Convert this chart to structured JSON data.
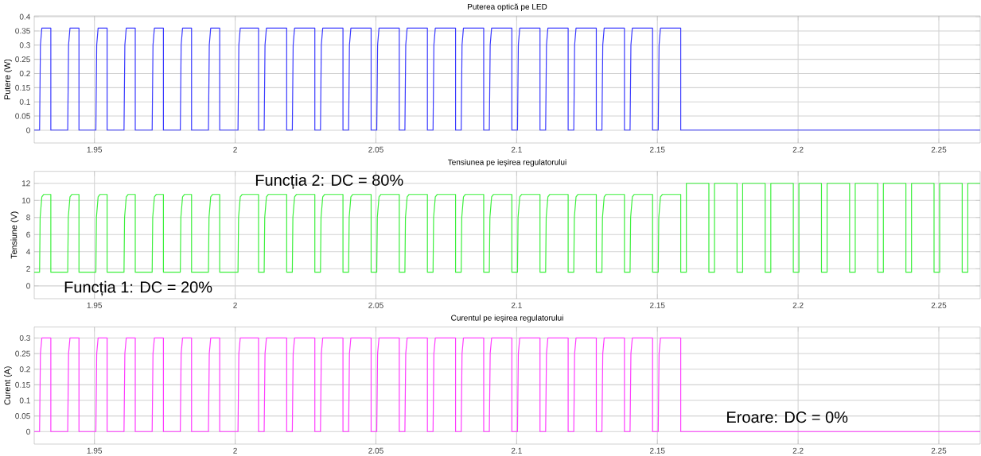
{
  "chart_data": [
    {
      "type": "line",
      "title": "Puterea optică pe LED",
      "ylabel": "Putere (W)",
      "xlim": [
        1.9286,
        2.2647
      ],
      "ylim": [
        -0.045,
        0.403
      ],
      "xticks": [
        1.95,
        2,
        2.05,
        2.1,
        2.15,
        2.2,
        2.25
      ],
      "yticks": [
        0,
        0.05,
        0.1,
        0.15,
        0.2,
        0.25,
        0.3,
        0.35,
        0.4
      ],
      "grid": true,
      "series": [
        {
          "color": "#3a3aff",
          "x": [
            1.9286,
            1.9305,
            1.9308,
            1.9313,
            1.9345,
            1.9345,
            1.9405,
            1.9408,
            1.9413,
            1.9445,
            1.9445,
            1.9505,
            1.9508,
            1.9513,
            1.9545,
            1.9545,
            1.9605,
            1.9608,
            1.9613,
            1.9645,
            1.9645,
            1.9705,
            1.9708,
            1.9713,
            1.9745,
            1.9745,
            1.9805,
            1.9808,
            1.9813,
            1.9845,
            1.9845,
            1.9905,
            1.9908,
            1.9913,
            1.9945,
            1.9945,
            2.001,
            2.0013,
            2.0018,
            2.0083,
            2.0083,
            2.0103,
            2.0106,
            2.0111,
            2.0183,
            2.0183,
            2.0203,
            2.0206,
            2.0211,
            2.0283,
            2.0283,
            2.0303,
            2.0306,
            2.0311,
            2.0383,
            2.0383,
            2.0403,
            2.0406,
            2.0411,
            2.0483,
            2.0483,
            2.0503,
            2.0506,
            2.0511,
            2.0583,
            2.0583,
            2.0603,
            2.0606,
            2.0611,
            2.0683,
            2.0683,
            2.0703,
            2.0706,
            2.0711,
            2.0783,
            2.0783,
            2.0803,
            2.0806,
            2.0811,
            2.0883,
            2.0883,
            2.0903,
            2.0906,
            2.0911,
            2.0983,
            2.0983,
            2.1003,
            2.1006,
            2.1011,
            2.1083,
            2.1083,
            2.1103,
            2.1106,
            2.1111,
            2.1183,
            2.1183,
            2.1203,
            2.1206,
            2.1211,
            2.1283,
            2.1283,
            2.1303,
            2.1306,
            2.1311,
            2.1383,
            2.1383,
            2.1403,
            2.1406,
            2.1411,
            2.1483,
            2.1483,
            2.1503,
            2.1506,
            2.1511,
            2.1583,
            2.1583,
            2.2647
          ],
          "values": [
            0,
            0,
            0.3,
            0.36,
            0.36,
            0,
            0,
            0.3,
            0.36,
            0.36,
            0,
            0,
            0.3,
            0.36,
            0.36,
            0,
            0,
            0.3,
            0.36,
            0.36,
            0,
            0,
            0.3,
            0.36,
            0.36,
            0,
            0,
            0.3,
            0.36,
            0.36,
            0,
            0,
            0.3,
            0.36,
            0.36,
            0,
            0,
            0.3,
            0.36,
            0.36,
            0,
            0,
            0.3,
            0.36,
            0.36,
            0,
            0,
            0.3,
            0.36,
            0.36,
            0,
            0,
            0.3,
            0.36,
            0.36,
            0,
            0,
            0.3,
            0.36,
            0.36,
            0,
            0,
            0.3,
            0.36,
            0.36,
            0,
            0,
            0.3,
            0.36,
            0.36,
            0,
            0,
            0.3,
            0.36,
            0.36,
            0,
            0,
            0.3,
            0.36,
            0.36,
            0,
            0,
            0.3,
            0.36,
            0.36,
            0,
            0,
            0.3,
            0.36,
            0.36,
            0,
            0,
            0.3,
            0.36,
            0.36,
            0,
            0,
            0.3,
            0.36,
            0.36,
            0,
            0,
            0.3,
            0.36,
            0.36,
            0,
            0,
            0.3,
            0.36,
            0.36,
            0,
            0,
            0.3,
            0.36,
            0.36,
            0,
            0
          ]
        }
      ]
    },
    {
      "type": "line",
      "title": "Tensiunea pe ieșirea regulatorului",
      "ylabel": "Tensiune (V)",
      "xlim": [
        1.9286,
        2.2647
      ],
      "ylim": [
        -1.5,
        13.4
      ],
      "xticks": [
        1.95,
        2,
        2.05,
        2.1,
        2.15,
        2.2,
        2.25
      ],
      "yticks": [
        0,
        2,
        4,
        6,
        8,
        10,
        12
      ],
      "grid": true,
      "annotations": [
        "Funcția 2: DC = 80%",
        "Funcția 1: DC = 20%"
      ],
      "series": [
        {
          "color": "#3cf03c",
          "x": [
            1.9286,
            1.9305,
            1.9307,
            1.9313,
            1.932,
            1.9345,
            1.9345,
            1.9405,
            1.9407,
            1.9413,
            1.942,
            1.9445,
            1.9445,
            1.9505,
            1.9507,
            1.9513,
            1.952,
            1.9545,
            1.9545,
            1.9605,
            1.9607,
            1.9613,
            1.962,
            1.9645,
            1.9645,
            1.9705,
            1.9707,
            1.9713,
            1.972,
            1.9745,
            1.9745,
            1.9805,
            1.9807,
            1.9813,
            1.982,
            1.9845,
            1.9845,
            1.9905,
            1.9907,
            1.9913,
            1.992,
            1.9945,
            1.9945,
            2.001,
            2.0012,
            2.0018,
            2.0025,
            2.0083,
            2.0083,
            2.0103,
            2.0105,
            2.0111,
            2.0118,
            2.0183,
            2.0183,
            2.0203,
            2.0205,
            2.0211,
            2.0218,
            2.0283,
            2.0283,
            2.0303,
            2.0305,
            2.0311,
            2.0318,
            2.0383,
            2.0383,
            2.0403,
            2.0405,
            2.0411,
            2.0418,
            2.0483,
            2.0483,
            2.0503,
            2.0505,
            2.0511,
            2.0518,
            2.0583,
            2.0583,
            2.0603,
            2.0605,
            2.0611,
            2.0618,
            2.0683,
            2.0683,
            2.0703,
            2.0705,
            2.0711,
            2.0718,
            2.0783,
            2.0783,
            2.0803,
            2.0805,
            2.0811,
            2.0818,
            2.0883,
            2.0883,
            2.0903,
            2.0905,
            2.0911,
            2.0918,
            2.0983,
            2.0983,
            2.1003,
            2.1005,
            2.1011,
            2.1018,
            2.1083,
            2.1083,
            2.1103,
            2.1105,
            2.1111,
            2.1118,
            2.1183,
            2.1183,
            2.1203,
            2.1205,
            2.1211,
            2.1218,
            2.1283,
            2.1283,
            2.1303,
            2.1305,
            2.1311,
            2.1318,
            2.1383,
            2.1383,
            2.1403,
            2.1405,
            2.1411,
            2.1418,
            2.1483,
            2.1483,
            2.1503,
            2.1505,
            2.1511,
            2.1518,
            2.1583,
            2.1583,
            2.1603,
            2.1603,
            2.1683,
            2.1683,
            2.1703,
            2.1703,
            2.1783,
            2.1783,
            2.1803,
            2.1803,
            2.1883,
            2.1883,
            2.1903,
            2.1903,
            2.1983,
            2.1983,
            2.2003,
            2.2003,
            2.2083,
            2.2083,
            2.2103,
            2.2103,
            2.2183,
            2.2183,
            2.2203,
            2.2203,
            2.2283,
            2.2283,
            2.2303,
            2.2303,
            2.2383,
            2.2383,
            2.2403,
            2.2403,
            2.2483,
            2.2483,
            2.2503,
            2.2503,
            2.2583,
            2.2583,
            2.2603,
            2.2603,
            2.2647
          ],
          "values": [
            1.6,
            1.6,
            8,
            10.4,
            10.7,
            10.7,
            1.6,
            1.6,
            8,
            10.4,
            10.7,
            10.7,
            1.6,
            1.6,
            8,
            10.4,
            10.7,
            10.7,
            1.6,
            1.6,
            8,
            10.4,
            10.7,
            10.7,
            1.6,
            1.6,
            8,
            10.4,
            10.7,
            10.7,
            1.6,
            1.6,
            8,
            10.4,
            10.7,
            10.7,
            1.6,
            1.6,
            8,
            10.4,
            10.7,
            10.7,
            1.6,
            1.6,
            8,
            10.4,
            10.7,
            10.7,
            1.6,
            1.6,
            8,
            10.4,
            10.7,
            10.7,
            1.6,
            1.6,
            8,
            10.4,
            10.7,
            10.7,
            1.6,
            1.6,
            8,
            10.4,
            10.7,
            10.7,
            1.6,
            1.6,
            8,
            10.4,
            10.7,
            10.7,
            1.6,
            1.6,
            8,
            10.4,
            10.7,
            10.7,
            1.6,
            1.6,
            8,
            10.4,
            10.7,
            10.7,
            1.6,
            1.6,
            8,
            10.4,
            10.7,
            10.7,
            1.6,
            1.6,
            8,
            10.4,
            10.7,
            10.7,
            1.6,
            1.6,
            8,
            10.4,
            10.7,
            10.7,
            1.6,
            1.6,
            8,
            10.4,
            10.7,
            10.7,
            1.6,
            1.6,
            8,
            10.4,
            10.7,
            10.7,
            1.6,
            1.6,
            8,
            10.4,
            10.7,
            10.7,
            1.6,
            1.6,
            8,
            10.4,
            10.7,
            10.7,
            1.6,
            1.6,
            8,
            10.4,
            10.7,
            10.7,
            1.6,
            1.6,
            8,
            10.4,
            10.7,
            10.7,
            1.6,
            1.6,
            12,
            12,
            1.6,
            1.6,
            12,
            12,
            1.6,
            1.6,
            12,
            12,
            1.6,
            1.6,
            12,
            12,
            1.6,
            1.6,
            12,
            12,
            1.6,
            1.6,
            12,
            12,
            1.6,
            1.6,
            12,
            12,
            1.6,
            1.6,
            12,
            12,
            1.6,
            1.6,
            12,
            12,
            1.6,
            1.6,
            12,
            12,
            1.6,
            1.6,
            12,
            12
          ]
        }
      ]
    },
    {
      "type": "line",
      "title": "Curentul pe ieșirea regulatorului",
      "ylabel": "Curent (A)",
      "xlim": [
        1.9286,
        2.2647
      ],
      "ylim": [
        -0.04,
        0.335
      ],
      "xticks": [
        1.95,
        2,
        2.05,
        2.1,
        2.15,
        2.2,
        2.25
      ],
      "yticks": [
        0,
        0.05,
        0.1,
        0.15,
        0.2,
        0.25,
        0.3
      ],
      "grid": true,
      "annotations": [
        "Eroare: DC = 0%"
      ],
      "series": [
        {
          "color": "#ff3cff",
          "x": [
            1.9286,
            1.9305,
            1.9308,
            1.9313,
            1.9345,
            1.9345,
            1.9405,
            1.9408,
            1.9413,
            1.9445,
            1.9445,
            1.9505,
            1.9508,
            1.9513,
            1.9545,
            1.9545,
            1.9605,
            1.9608,
            1.9613,
            1.9645,
            1.9645,
            1.9705,
            1.9708,
            1.9713,
            1.9745,
            1.9745,
            1.9805,
            1.9808,
            1.9813,
            1.9845,
            1.9845,
            1.9905,
            1.9908,
            1.9913,
            1.9945,
            1.9945,
            2.001,
            2.0013,
            2.0018,
            2.0083,
            2.0083,
            2.0103,
            2.0106,
            2.0111,
            2.0183,
            2.0183,
            2.0203,
            2.0206,
            2.0211,
            2.0283,
            2.0283,
            2.0303,
            2.0306,
            2.0311,
            2.0383,
            2.0383,
            2.0403,
            2.0406,
            2.0411,
            2.0483,
            2.0483,
            2.0503,
            2.0506,
            2.0511,
            2.0583,
            2.0583,
            2.0603,
            2.0606,
            2.0611,
            2.0683,
            2.0683,
            2.0703,
            2.0706,
            2.0711,
            2.0783,
            2.0783,
            2.0803,
            2.0806,
            2.0811,
            2.0883,
            2.0883,
            2.0903,
            2.0906,
            2.0911,
            2.0983,
            2.0983,
            2.1003,
            2.1006,
            2.1011,
            2.1083,
            2.1083,
            2.1103,
            2.1106,
            2.1111,
            2.1183,
            2.1183,
            2.1203,
            2.1206,
            2.1211,
            2.1283,
            2.1283,
            2.1303,
            2.1306,
            2.1311,
            2.1383,
            2.1383,
            2.1403,
            2.1406,
            2.1411,
            2.1483,
            2.1483,
            2.1503,
            2.1506,
            2.1511,
            2.1583,
            2.1583,
            2.2647
          ],
          "values": [
            0,
            0,
            0.25,
            0.3,
            0.3,
            0,
            0,
            0.25,
            0.3,
            0.3,
            0,
            0,
            0.25,
            0.3,
            0.3,
            0,
            0,
            0.25,
            0.3,
            0.3,
            0,
            0,
            0.25,
            0.3,
            0.3,
            0,
            0,
            0.25,
            0.3,
            0.3,
            0,
            0,
            0.25,
            0.3,
            0.3,
            0,
            0,
            0.25,
            0.3,
            0.3,
            0,
            0,
            0.25,
            0.3,
            0.3,
            0,
            0,
            0.25,
            0.3,
            0.3,
            0,
            0,
            0.25,
            0.3,
            0.3,
            0,
            0,
            0.25,
            0.3,
            0.3,
            0,
            0,
            0.25,
            0.3,
            0.3,
            0,
            0,
            0.25,
            0.3,
            0.3,
            0,
            0,
            0.25,
            0.3,
            0.3,
            0,
            0,
            0.25,
            0.3,
            0.3,
            0,
            0,
            0.25,
            0.3,
            0.3,
            0,
            0,
            0.25,
            0.3,
            0.3,
            0,
            0,
            0.25,
            0.3,
            0.3,
            0,
            0,
            0.25,
            0.3,
            0.3,
            0,
            0,
            0.25,
            0.3,
            0.3,
            0,
            0,
            0.25,
            0.3,
            0.3,
            0,
            0,
            0.25,
            0.3,
            0.3,
            0,
            0
          ]
        }
      ]
    }
  ]
}
